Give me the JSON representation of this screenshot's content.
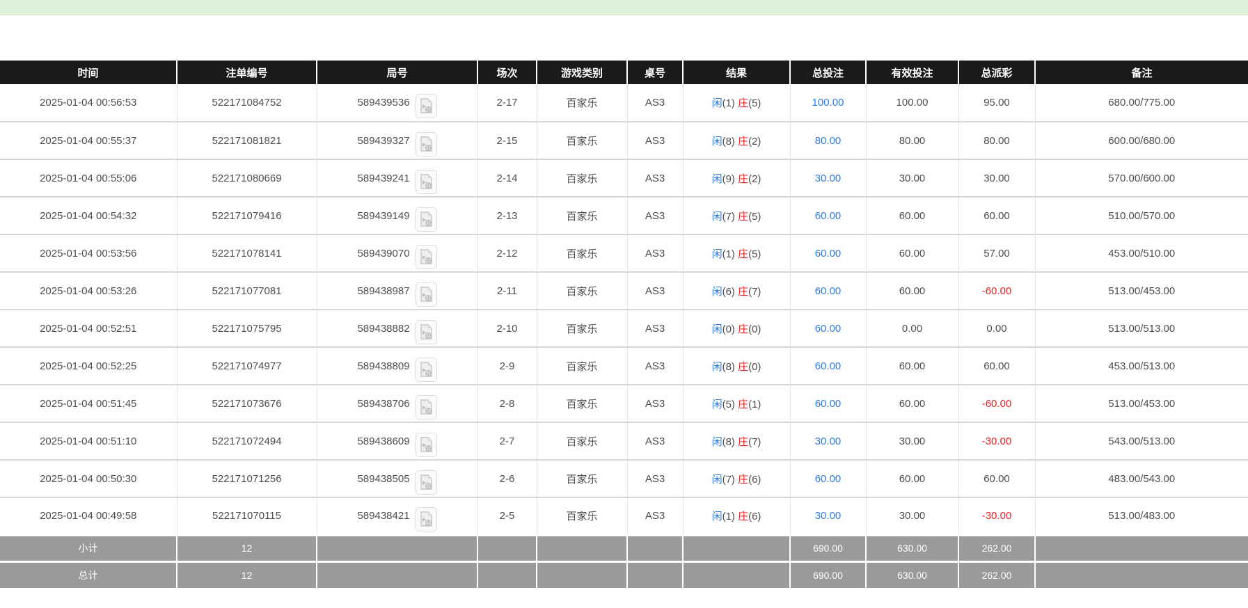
{
  "page": {
    "top_bar_color": "#dff0d8"
  },
  "colors": {
    "header_bg": "#1b1b1b",
    "summary_bg": "#9a9a9a",
    "player_blue": "#2e7bdf",
    "banker_red": "#ee2222",
    "negative_red": "#ee2222"
  },
  "table": {
    "headers": [
      "时间",
      "注单编号",
      "局号",
      "场次",
      "游戏类别",
      "桌号",
      "结果",
      "总投注",
      "有效投注",
      "总派彩",
      "备注"
    ],
    "result_labels": {
      "player": "闲",
      "banker": "庄"
    },
    "rows": [
      {
        "time": "2025-01-04 00:56:53",
        "order_no": "522171084752",
        "round_no": "589439536",
        "session": "2-17",
        "game": "百家乐",
        "table_no": "AS3",
        "player": "1",
        "banker": "5",
        "total_bet": "100.00",
        "valid_bet": "100.00",
        "payout": "95.00",
        "remark": "680.00/775.00"
      },
      {
        "time": "2025-01-04 00:55:37",
        "order_no": "522171081821",
        "round_no": "589439327",
        "session": "2-15",
        "game": "百家乐",
        "table_no": "AS3",
        "player": "8",
        "banker": "2",
        "total_bet": "80.00",
        "valid_bet": "80.00",
        "payout": "80.00",
        "remark": "600.00/680.00"
      },
      {
        "time": "2025-01-04 00:55:06",
        "order_no": "522171080669",
        "round_no": "589439241",
        "session": "2-14",
        "game": "百家乐",
        "table_no": "AS3",
        "player": "9",
        "banker": "2",
        "total_bet": "30.00",
        "valid_bet": "30.00",
        "payout": "30.00",
        "remark": "570.00/600.00"
      },
      {
        "time": "2025-01-04 00:54:32",
        "order_no": "522171079416",
        "round_no": "589439149",
        "session": "2-13",
        "game": "百家乐",
        "table_no": "AS3",
        "player": "7",
        "banker": "5",
        "total_bet": "60.00",
        "valid_bet": "60.00",
        "payout": "60.00",
        "remark": "510.00/570.00"
      },
      {
        "time": "2025-01-04 00:53:56",
        "order_no": "522171078141",
        "round_no": "589439070",
        "session": "2-12",
        "game": "百家乐",
        "table_no": "AS3",
        "player": "1",
        "banker": "5",
        "total_bet": "60.00",
        "valid_bet": "60.00",
        "payout": "57.00",
        "remark": "453.00/510.00"
      },
      {
        "time": "2025-01-04 00:53:26",
        "order_no": "522171077081",
        "round_no": "589438987",
        "session": "2-11",
        "game": "百家乐",
        "table_no": "AS3",
        "player": "6",
        "banker": "7",
        "total_bet": "60.00",
        "valid_bet": "60.00",
        "payout": "-60.00",
        "remark": "513.00/453.00"
      },
      {
        "time": "2025-01-04 00:52:51",
        "order_no": "522171075795",
        "round_no": "589438882",
        "session": "2-10",
        "game": "百家乐",
        "table_no": "AS3",
        "player": "0",
        "banker": "0",
        "total_bet": "60.00",
        "valid_bet": "0.00",
        "payout": "0.00",
        "remark": "513.00/513.00"
      },
      {
        "time": "2025-01-04 00:52:25",
        "order_no": "522171074977",
        "round_no": "589438809",
        "session": "2-9",
        "game": "百家乐",
        "table_no": "AS3",
        "player": "8",
        "banker": "0",
        "total_bet": "60.00",
        "valid_bet": "60.00",
        "payout": "60.00",
        "remark": "453.00/513.00"
      },
      {
        "time": "2025-01-04 00:51:45",
        "order_no": "522171073676",
        "round_no": "589438706",
        "session": "2-8",
        "game": "百家乐",
        "table_no": "AS3",
        "player": "5",
        "banker": "1",
        "total_bet": "60.00",
        "valid_bet": "60.00",
        "payout": "-60.00",
        "remark": "513.00/453.00"
      },
      {
        "time": "2025-01-04 00:51:10",
        "order_no": "522171072494",
        "round_no": "589438609",
        "session": "2-7",
        "game": "百家乐",
        "table_no": "AS3",
        "player": "8",
        "banker": "7",
        "total_bet": "30.00",
        "valid_bet": "30.00",
        "payout": "-30.00",
        "remark": "543.00/513.00"
      },
      {
        "time": "2025-01-04 00:50:30",
        "order_no": "522171071256",
        "round_no": "589438505",
        "session": "2-6",
        "game": "百家乐",
        "table_no": "AS3",
        "player": "7",
        "banker": "6",
        "total_bet": "60.00",
        "valid_bet": "60.00",
        "payout": "60.00",
        "remark": "483.00/543.00"
      },
      {
        "time": "2025-01-04 00:49:58",
        "order_no": "522171070115",
        "round_no": "589438421",
        "session": "2-5",
        "game": "百家乐",
        "table_no": "AS3",
        "player": "1",
        "banker": "6",
        "total_bet": "30.00",
        "valid_bet": "30.00",
        "payout": "-30.00",
        "remark": "513.00/483.00"
      }
    ],
    "summary_rows": [
      {
        "label": "小计",
        "count": "12",
        "total_bet": "690.00",
        "valid_bet": "630.00",
        "payout": "262.00"
      },
      {
        "label": "总计",
        "count": "12",
        "total_bet": "690.00",
        "valid_bet": "630.00",
        "payout": "262.00"
      }
    ]
  }
}
